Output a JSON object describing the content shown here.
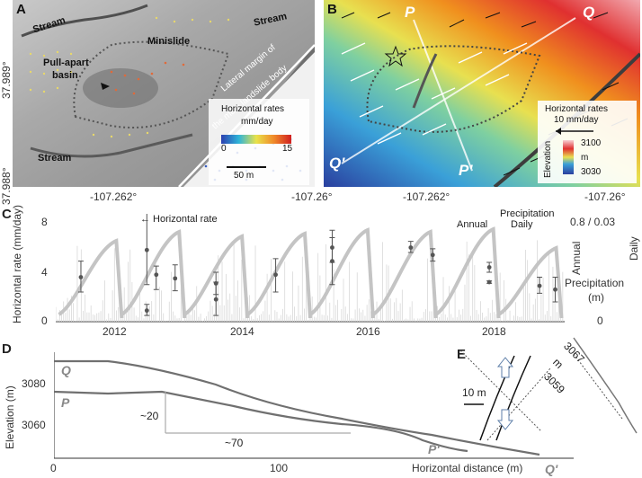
{
  "panel_a": {
    "letter": "A",
    "labels": {
      "stream_top_left": "Stream",
      "stream_top_right": "Stream",
      "stream_bottom": "Stream",
      "minislide": "Minislide",
      "pull_apart_1": "Pull-apart",
      "pull_apart_2": "basin",
      "lateral_margin_1": "Lateral margin of",
      "lateral_margin_2": "the main landslide body"
    },
    "legend": {
      "title_1": "Horizontal rates",
      "title_2": "mm/day",
      "min": "0",
      "max": "15"
    },
    "scalebar": "50 m",
    "lat_top": "37.989°",
    "lat_bottom": "37.988°"
  },
  "panel_b": {
    "letter": "B",
    "labels": {
      "P": "P",
      "Q": "Q",
      "Q_prime": "Q'",
      "P_prime": "P'"
    },
    "legend": {
      "title_1": "Horizontal rates",
      "title_2": "10 mm/day",
      "elevation": "Elevation",
      "unit": "m",
      "max": "3100",
      "min": "3030"
    }
  },
  "lon_ticks": [
    "-107.262°",
    "-107.26°",
    "-107.262°",
    "-107.26°"
  ],
  "panel_c": {
    "letter": "C",
    "ylabel_left": "Horizontal rate (mm/day)",
    "ylabel_right_1": "Annual",
    "ylabel_right_2": "Daily",
    "ylabel_right_3": "Precipitation",
    "ylabel_right_4": "(m)",
    "right_top_tick": "0.8 / 0.03",
    "right_bottom_tick": "0",
    "left_ticks": [
      "8",
      "4",
      "0"
    ],
    "x_ticks": [
      "2012",
      "2014",
      "2016",
      "2018"
    ],
    "annotation_rate": "← Horizontal rate",
    "annotation_precip": "Precipitation",
    "annotation_annual": "Annual",
    "annotation_daily": "Daily"
  },
  "panel_d": {
    "letter": "D",
    "ylabel": "Elevation (m)",
    "y_ticks": [
      "3080",
      "3060"
    ],
    "x_ticks": [
      "0",
      "100"
    ],
    "xlabel": "Horizontal distance (m)",
    "profile_Q": "Q",
    "profile_P": "P",
    "profile_P_end": "P'",
    "profile_Q_end": "Q'",
    "dim_vertical": "~20",
    "dim_horizontal": "~70"
  },
  "panel_e": {
    "letter": "E",
    "scalebar": "10 m",
    "elev_top": "3067",
    "elev_unit": "m",
    "elev_bottom": "3059"
  },
  "chart_data": {
    "type": "scatter",
    "title": "",
    "xlabel": "",
    "ylabel": "Horizontal rate (mm/day)",
    "ylim": [
      0,
      8
    ],
    "xlim": [
      2010.9,
      2019.0
    ],
    "series": [
      {
        "name": "Horizontal rate",
        "points": [
          {
            "x": 2011.3,
            "y": 3.6,
            "lo": 2.4,
            "hi": 4.9
          },
          {
            "x": 2012.35,
            "y": 5.8,
            "lo": 3.0,
            "hi": 8.8
          },
          {
            "x": 2012.35,
            "y": 0.9,
            "lo": 0.5,
            "hi": 1.4
          },
          {
            "x": 2012.5,
            "y": 3.8,
            "lo": 2.6,
            "hi": 4.5
          },
          {
            "x": 2012.8,
            "y": 3.5,
            "lo": 2.5,
            "hi": 4.6
          },
          {
            "x": 2013.45,
            "y": 3.1,
            "lo": 2.2,
            "hi": 4.0
          },
          {
            "x": 2013.45,
            "y": 1.8,
            "lo": 0.5,
            "hi": 3.2
          },
          {
            "x": 2014.4,
            "y": 3.8,
            "lo": 2.4,
            "hi": 5.1
          },
          {
            "x": 2015.3,
            "y": 4.9,
            "lo": 3.0,
            "hi": 7.4
          },
          {
            "x": 2015.3,
            "y": 6.0,
            "lo": 4.8,
            "hi": 6.8
          },
          {
            "x": 2016.55,
            "y": 6.0,
            "lo": 5.6,
            "hi": 6.5
          },
          {
            "x": 2016.9,
            "y": 5.4,
            "lo": 4.9,
            "hi": 5.9
          },
          {
            "x": 2017.8,
            "y": 4.4,
            "lo": 4.0,
            "hi": 4.8
          },
          {
            "x": 2017.8,
            "y": 3.2,
            "lo": 3.1,
            "hi": 3.3
          },
          {
            "x": 2018.6,
            "y": 2.9,
            "lo": 2.3,
            "hi": 3.6
          },
          {
            "x": 2018.85,
            "y": 2.6,
            "lo": 1.6,
            "hi": 3.6
          }
        ]
      }
    ]
  },
  "colors": {
    "hillshade": "#9a9a9a",
    "profile_line": "#707070",
    "precip_line": "#c4c4c4",
    "rate_point": "#555555"
  }
}
